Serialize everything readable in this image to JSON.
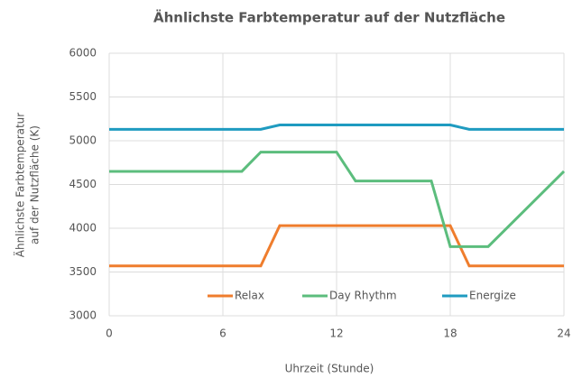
{
  "chart_data": {
    "type": "line",
    "title": "Ähnlichste Farbtemperatur auf der Nutzfläche",
    "ylabel": [
      "Ähnlichste Farbtemperatur",
      "auf der Nutzfläche (K)"
    ],
    "xlabel": "Uhrzeit (Stunde)",
    "xlim": [
      0,
      24
    ],
    "xticks": [
      0,
      6,
      12,
      18,
      24
    ],
    "ylim": [
      3000,
      6000
    ],
    "yticks": [
      3000,
      3500,
      4000,
      4500,
      5000,
      5500,
      6000
    ],
    "grid": true,
    "legend": "bottom",
    "series": [
      {
        "name": "Relax",
        "color": "#ef7d2d",
        "x": [
          0,
          8,
          9,
          18,
          19,
          24
        ],
        "values": [
          3570,
          3570,
          4030,
          4030,
          3570,
          3570
        ]
      },
      {
        "name": "Day Rhythm",
        "color": "#5cbd7d",
        "x": [
          0,
          7,
          8,
          12,
          13,
          17,
          18,
          20,
          24
        ],
        "values": [
          4650,
          4650,
          4870,
          4870,
          4540,
          4540,
          3790,
          3790,
          4650
        ]
      },
      {
        "name": "Energize",
        "color": "#1f9bc0",
        "x": [
          0,
          8,
          9,
          18,
          19,
          24
        ],
        "values": [
          5130,
          5130,
          5180,
          5180,
          5130,
          5130
        ]
      }
    ]
  }
}
